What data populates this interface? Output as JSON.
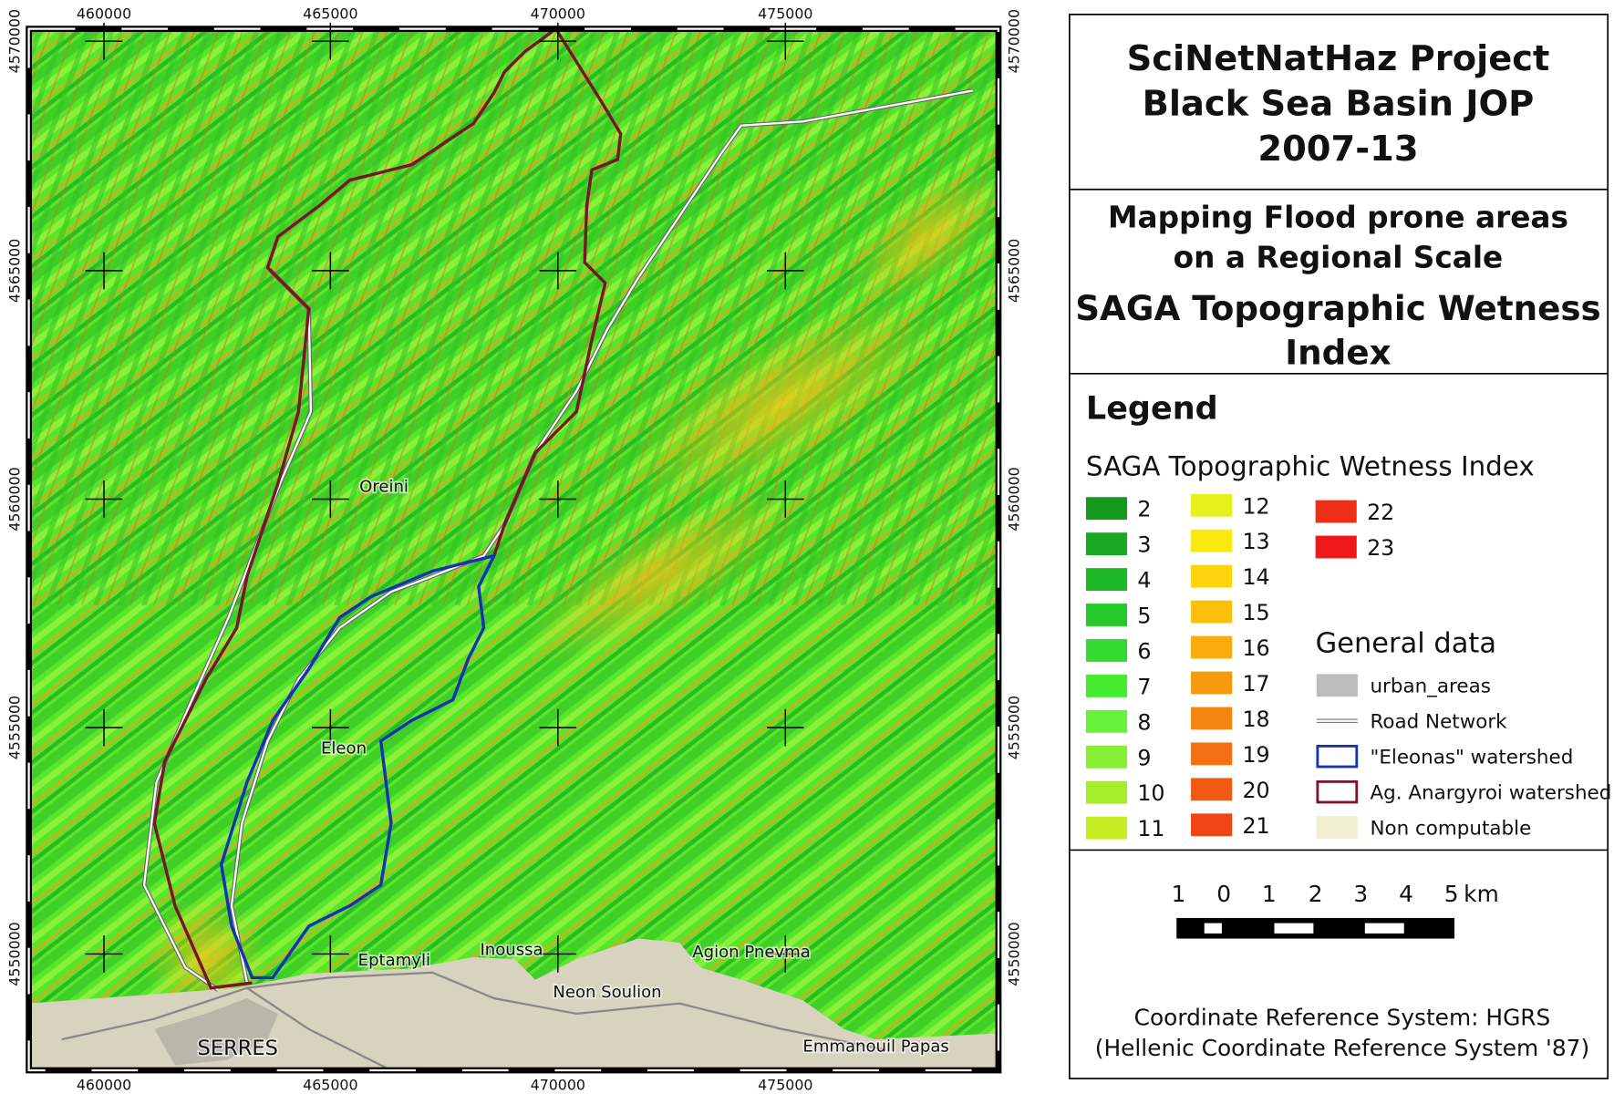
{
  "map": {
    "x_ticks": [
      "460000",
      "465000",
      "470000",
      "475000"
    ],
    "y_ticks": [
      "4570000",
      "4565000",
      "4560000",
      "4555000",
      "4550000"
    ],
    "places": [
      "Oreini",
      "Eleon",
      "Eptamyli",
      "Inoussa",
      "Agion Pnevma",
      "Neon Soulion",
      "SERRES",
      "Emmanouil Papas"
    ]
  },
  "header": {
    "title_lines": [
      "SciNetNatHaz Project",
      "Black Sea Basin JOP",
      "2007-13"
    ],
    "subtitle_lines": [
      "Mapping Flood prone areas",
      "on a Regional Scale"
    ],
    "product_lines": [
      "SAGA Topographic Wetness",
      "Index"
    ]
  },
  "legend": {
    "title": "Legend",
    "index_title": "SAGA Topographic Wetness Index",
    "classes": [
      {
        "label": "2",
        "color": "#149a1c"
      },
      {
        "label": "3",
        "color": "#19a922"
      },
      {
        "label": "4",
        "color": "#1eb928"
      },
      {
        "label": "5",
        "color": "#26c92c"
      },
      {
        "label": "6",
        "color": "#33da2f"
      },
      {
        "label": "7",
        "color": "#45ec2e"
      },
      {
        "label": "8",
        "color": "#66f23a"
      },
      {
        "label": "9",
        "color": "#86f034"
      },
      {
        "label": "10",
        "color": "#a6ee2a"
      },
      {
        "label": "11",
        "color": "#c6ec22"
      },
      {
        "label": "12",
        "color": "#e6f01a"
      },
      {
        "label": "13",
        "color": "#fbe80e"
      },
      {
        "label": "14",
        "color": "#fdd40c"
      },
      {
        "label": "15",
        "color": "#fbc10a"
      },
      {
        "label": "16",
        "color": "#f9ac0c"
      },
      {
        "label": "17",
        "color": "#f8990e"
      },
      {
        "label": "18",
        "color": "#f68510"
      },
      {
        "label": "19",
        "color": "#f47012"
      },
      {
        "label": "20",
        "color": "#f25a14"
      },
      {
        "label": "21",
        "color": "#f04416"
      },
      {
        "label": "22",
        "color": "#ef2e18"
      },
      {
        "label": "23",
        "color": "#ee1a1a"
      }
    ],
    "general_title": "General data",
    "general_items": [
      {
        "label": "urban_areas",
        "symbol": "fill",
        "color": "#bdbdbd"
      },
      {
        "label": "Road Network",
        "symbol": "road",
        "color": "#777777"
      },
      {
        "label": "\"Eleonas\" watershed",
        "symbol": "outline",
        "color": "#1432b4"
      },
      {
        "label": "Ag. Anargyroi watershed",
        "symbol": "outline",
        "color": "#7a1428"
      },
      {
        "label": "Non computable",
        "symbol": "fill",
        "color": "#f0efd2"
      }
    ]
  },
  "scale_bar": {
    "labels": [
      "1",
      "0",
      "1",
      "2",
      "3",
      "4",
      "5"
    ],
    "unit": "km"
  },
  "crs": [
    "Coordinate Reference System: HGRS",
    "(Hellenic Coordinate Reference System '87)"
  ]
}
